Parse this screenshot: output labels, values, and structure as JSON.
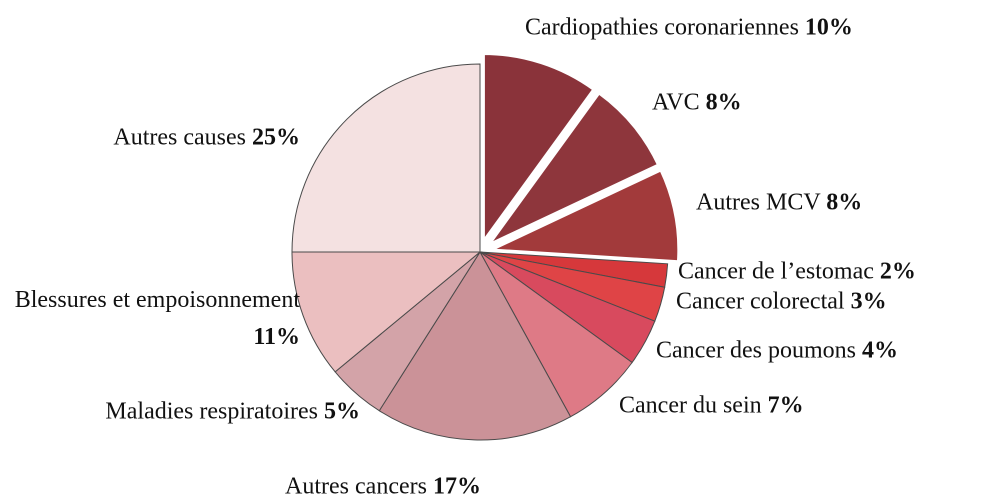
{
  "chart_data": {
    "type": "pie",
    "categories": [
      "Cardiopathies coronariennes",
      "AVC",
      "Autres MCV",
      "Cancer de l’estomac",
      "Cancer colorectal",
      "Cancer des poumons",
      "Cancer du sein",
      "Autres cancers",
      "Maladies respiratoires",
      "Blessures et empoisonnement",
      "Autres causes"
    ],
    "values": [
      10,
      8,
      8,
      2,
      3,
      4,
      7,
      17,
      5,
      11,
      25
    ],
    "value_labels": [
      "10%",
      "8%",
      "8%",
      "2%",
      "3%",
      "4%",
      "7%",
      "17%",
      "5%",
      "11%",
      "25%"
    ],
    "colors": [
      "#8a333a",
      "#8e363c",
      "#a23a3b",
      "#d6383b",
      "#df4446",
      "#d84a5e",
      "#de7a86",
      "#cb9298",
      "#d3a3a8",
      "#ebbfc0",
      "#f4e1e1"
    ],
    "explode": [
      true,
      true,
      true,
      false,
      false,
      false,
      false,
      false,
      false,
      false,
      false
    ]
  }
}
